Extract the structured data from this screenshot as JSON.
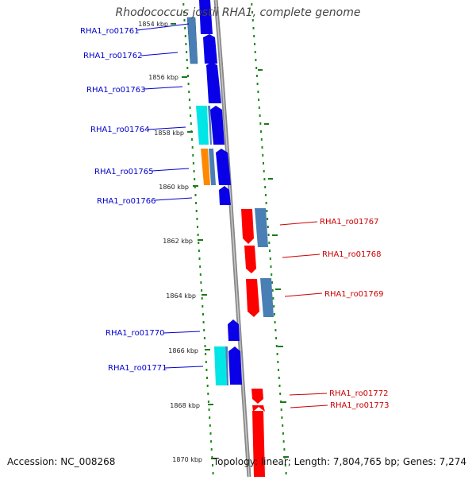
{
  "header": {
    "title": "Rhodococcus jostii RHA1, complete genome"
  },
  "footer": {
    "accession": "Accession: NC_008268",
    "summary": "Topology: linear; Length: 7,804,765 bp; Genes: 7,274"
  },
  "colors": {
    "forward_gene": "#0a00e8",
    "reverse_gene": "#ff0000",
    "forward_label": "#0000cc",
    "reverse_label": "#cc0000",
    "backbone": "#888888",
    "tick": "#1a7a1a",
    "cyan_feature": "#00e5e5",
    "steel_feature": "#4a7fb5",
    "orange_feature": "#ff8800"
  },
  "scale": {
    "ticks": [
      "1854 kbp",
      "1856 kbp",
      "1858 kbp",
      "1860 kbp",
      "1862 kbp",
      "1864 kbp",
      "1866 kbp",
      "1868 kbp",
      "1870 kbp"
    ]
  },
  "gene_labels": {
    "forward": [
      "RHA1_ro01761",
      "RHA1_ro01762",
      "RHA1_ro01763",
      "RHA1_ro01764",
      "RHA1_ro01765",
      "RHA1_ro01766",
      "RHA1_ro01770",
      "RHA1_ro01771"
    ],
    "reverse": [
      "RHA1_ro01767",
      "RHA1_ro01768",
      "RHA1_ro01769",
      "RHA1_ro01772",
      "RHA1_ro01773"
    ]
  }
}
